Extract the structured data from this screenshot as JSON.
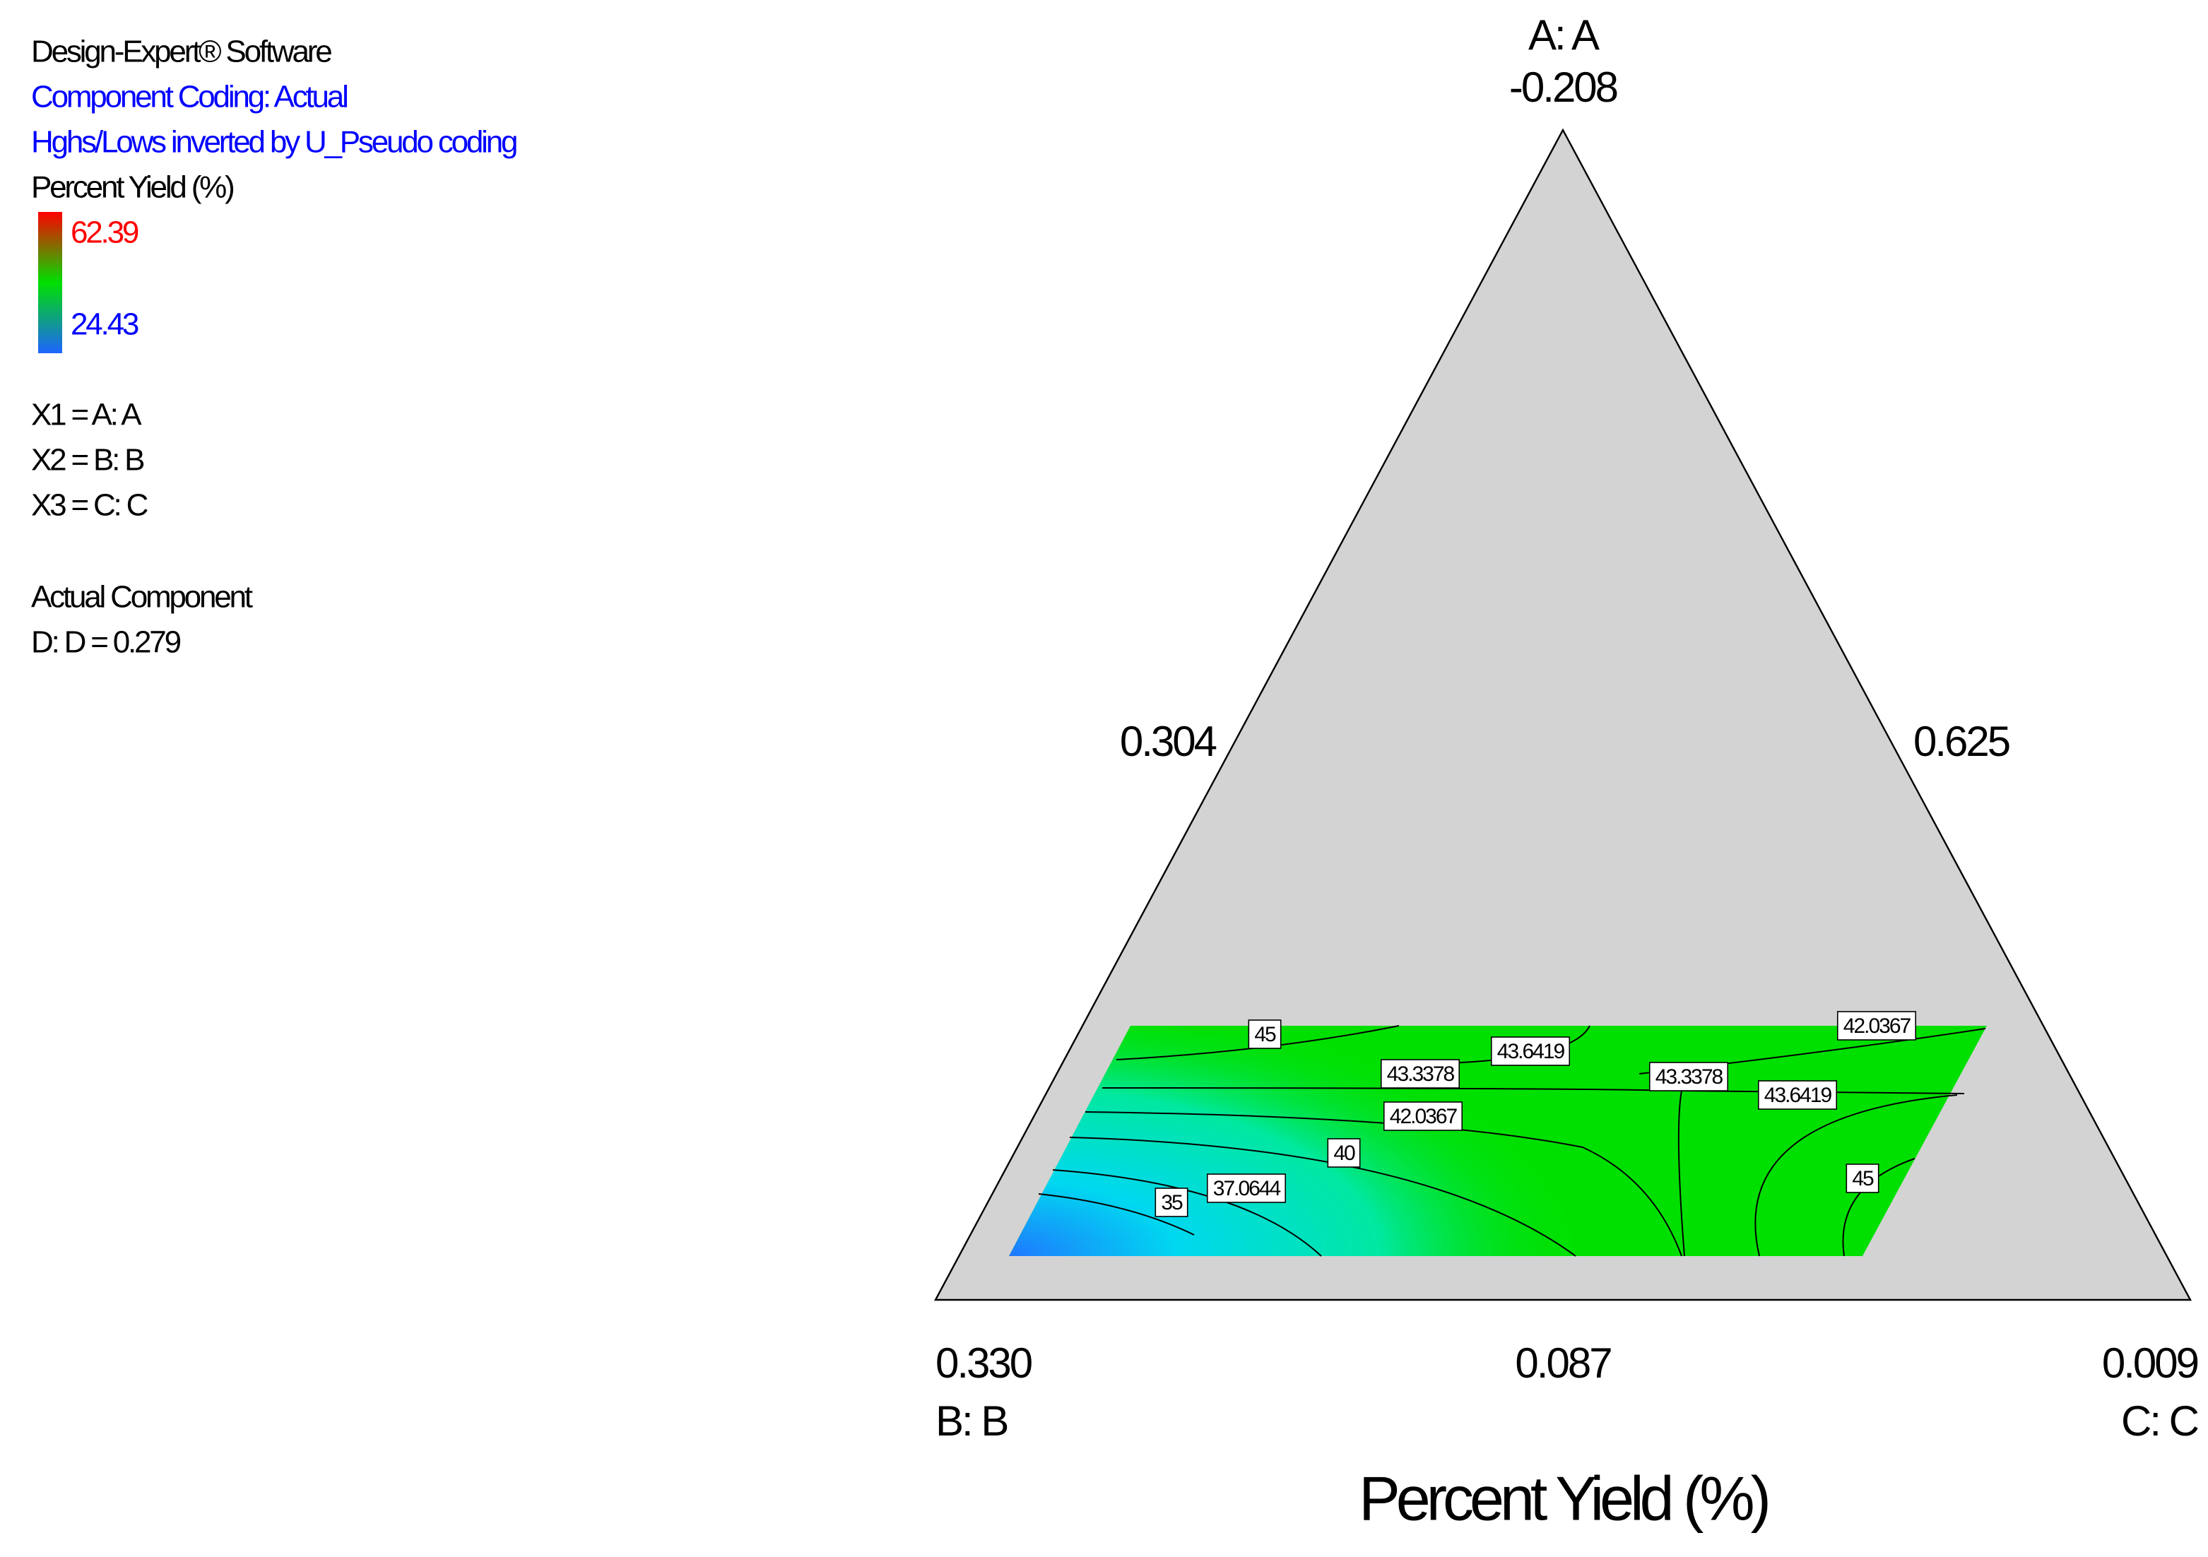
{
  "chart_data": {
    "type": "ternary-contour",
    "software": "Design-Expert® Software",
    "coding": "Component Coding: Actual",
    "coding_note": "Hghs/Lows inverted by U_Pseudo coding",
    "legend_title": "Percent Yield (%)",
    "color_range": {
      "high": 62.39,
      "low": 24.43,
      "high_color": "#ff0000",
      "mid_color": "#00e000",
      "low_color": "#1e64ff"
    },
    "variables": [
      "X1 = A: A",
      "X2 = B: B",
      "X3 = C: C"
    ],
    "actual_component_heading": "Actual Component",
    "actual_component": "D: D = 0.279",
    "vertices": [
      {
        "name": "A: A",
        "value": -0.208
      },
      {
        "name": "B: B",
        "value": {
          "value": 0.33,
          "label": "0.330"
        }
      },
      {
        "name": "C: C",
        "value": 0.009
      }
    ],
    "edge_values": {
      "left": 0.304,
      "right": 0.625,
      "bottom": 0.087
    },
    "title": "Percent Yield (%)",
    "contour_labels": [
      45,
      43.3378,
      43.6419,
      43.3378,
      43.6419,
      42.0367,
      42.0367,
      40,
      37.0644,
      35,
      45
    ],
    "triangle_color": "#d3d3d3",
    "region_color": "#00e000"
  }
}
